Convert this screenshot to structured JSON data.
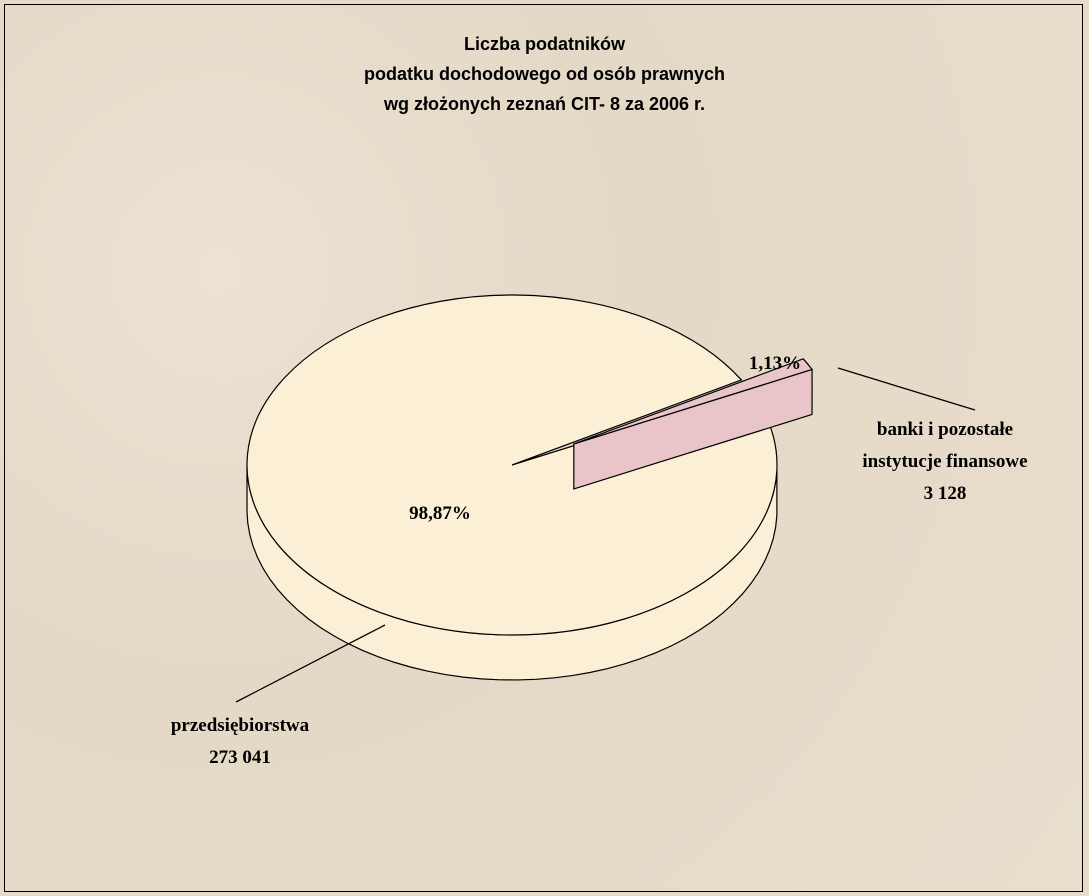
{
  "chart_data": {
    "type": "pie3d",
    "title": [
      "Liczba podatników",
      "podatku dochodowego od osób prawnych",
      "wg złożonych zeznań CIT- 8 za 2006 r."
    ],
    "categories": [
      "przedsiębiorstwa",
      "banki i pozostałe instytucje finansowe"
    ],
    "values": [
      98.87,
      1.13
    ],
    "value_labels": [
      "98,87%",
      "1,13%"
    ],
    "counts": [
      273041,
      3128
    ],
    "count_labels": [
      "273 041",
      "3 128"
    ],
    "colors": [
      "#fbefd6",
      "#e9c4c8"
    ],
    "exploded": [
      false,
      true
    ]
  }
}
